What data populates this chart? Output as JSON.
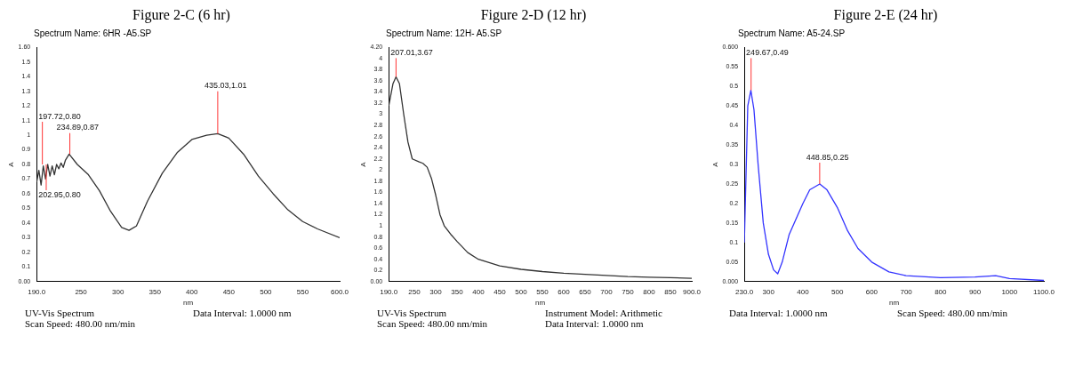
{
  "chart_data": [
    {
      "type": "line",
      "title": "Figure 2-C (6 hr)",
      "subtitle": "Spectrum Name: 6HR -A5.SP",
      "xlabel": "nm",
      "ylabel": "A",
      "x": [
        190,
        193,
        196,
        199,
        202,
        205,
        208,
        211,
        214,
        217,
        220,
        223,
        226,
        229,
        234,
        245,
        260,
        275,
        290,
        305,
        315,
        325,
        340,
        360,
        380,
        400,
        420,
        435,
        450,
        470,
        490,
        510,
        530,
        550,
        570,
        600
      ],
      "series": [
        {
          "color": "#333333",
          "values": [
            0.68,
            0.76,
            0.66,
            0.79,
            0.7,
            0.8,
            0.72,
            0.79,
            0.73,
            0.8,
            0.77,
            0.81,
            0.78,
            0.83,
            0.87,
            0.8,
            0.73,
            0.62,
            0.48,
            0.37,
            0.35,
            0.38,
            0.55,
            0.74,
            0.88,
            0.97,
            1.0,
            1.01,
            0.98,
            0.87,
            0.72,
            0.6,
            0.49,
            0.41,
            0.36,
            0.3
          ]
        }
      ],
      "xlim": [
        190,
        600
      ],
      "xticks": [
        {
          "value": 190,
          "label": "190.0"
        },
        250,
        300,
        350,
        400,
        450,
        500,
        550,
        {
          "value": 600,
          "label": "600.0"
        }
      ],
      "ylim": [
        0,
        1.6
      ],
      "yticks": [
        {
          "value": 0,
          "label": "0.00"
        },
        0.1,
        0.2,
        0.3,
        0.4,
        0.5,
        0.6,
        0.7,
        0.8,
        0.9,
        1.0,
        1.1,
        1.2,
        1.3,
        1.4,
        1.5,
        {
          "value": 1.6,
          "label": "1.60"
        }
      ],
      "grid": false,
      "legend": false,
      "line_style": "solid",
      "marker": "none",
      "annotations": [
        "UV-Vis Spectrum",
        {
          "text": "197.72,0.80",
          "x": 197.72,
          "y": 0.8
        },
        {
          "text": "234.89,0.87",
          "x": 234.89,
          "y": 0.87
        },
        {
          "text": "202.95,0.80",
          "x": 202.95,
          "y": 0.8
        },
        {
          "text": "435.03,1.01",
          "x": 435.03,
          "y": 1.01
        },
        "Data Interval: 1.0000 nm",
        "Scan Speed: 480.00 nm/min"
      ]
    },
    {
      "type": "line",
      "title": "Figure 2-D (12 hr)",
      "subtitle": "Spectrum Name: 12H- A5.SP",
      "xlabel": "nm",
      "ylabel": "A",
      "x": [
        190,
        200,
        207,
        215,
        225,
        235,
        245,
        260,
        270,
        280,
        290,
        300,
        310,
        320,
        335,
        350,
        375,
        400,
        450,
        500,
        550,
        600,
        650,
        700,
        750,
        800,
        850,
        900
      ],
      "series": [
        {
          "color": "#333333",
          "values": [
            3.15,
            3.55,
            3.67,
            3.55,
            3.0,
            2.5,
            2.2,
            2.15,
            2.12,
            2.05,
            1.85,
            1.55,
            1.2,
            1.0,
            0.85,
            0.72,
            0.52,
            0.4,
            0.28,
            0.22,
            0.18,
            0.15,
            0.13,
            0.11,
            0.09,
            0.08,
            0.07,
            0.06
          ]
        }
      ],
      "xlim": [
        190,
        900
      ],
      "xticks": [
        {
          "value": 190,
          "label": "190.0"
        },
        250,
        300,
        350,
        400,
        450,
        500,
        550,
        600,
        650,
        700,
        750,
        800,
        850,
        {
          "value": 900,
          "label": "900.0"
        }
      ],
      "ylim": [
        0,
        4.2
      ],
      "yticks": [
        {
          "value": 0,
          "label": "0.00"
        },
        0.2,
        0.4,
        0.6,
        0.8,
        1.0,
        1.2,
        1.4,
        1.6,
        1.8,
        2.0,
        2.2,
        2.4,
        2.6,
        2.8,
        3.0,
        3.2,
        3.4,
        3.6,
        3.8,
        4.0,
        {
          "value": 4.2,
          "label": "4.20"
        }
      ],
      "grid": false,
      "legend": false,
      "line_style": "solid",
      "marker": "none",
      "annotations": [
        "UV-Vis Spectrum",
        {
          "text": "207.01,3.67",
          "x": 207.01,
          "y": 3.67
        },
        "Instrument Model: Arithmetic",
        "Scan Speed: 480.00 nm/min",
        "Data Interval: 1.0000 nm"
      ]
    },
    {
      "type": "line",
      "title": "Figure 2-E (24 hr)",
      "subtitle": "Spectrum Name: A5-24.SP",
      "xlabel": "nm",
      "ylabel": "A",
      "x": [
        230,
        240,
        249,
        258,
        270,
        285,
        300,
        315,
        327,
        340,
        360,
        380,
        400,
        420,
        449,
        470,
        500,
        530,
        560,
        600,
        650,
        700,
        800,
        900,
        960,
        1000,
        1100
      ],
      "series": [
        {
          "color": "#3333ff",
          "values": [
            0.1,
            0.45,
            0.49,
            0.44,
            0.3,
            0.15,
            0.07,
            0.03,
            0.02,
            0.05,
            0.12,
            0.16,
            0.2,
            0.235,
            0.25,
            0.235,
            0.19,
            0.13,
            0.085,
            0.05,
            0.025,
            0.015,
            0.01,
            0.012,
            0.015,
            0.008,
            0.003
          ]
        }
      ],
      "xlim": [
        230,
        1100
      ],
      "xticks": [
        {
          "value": 230,
          "label": "230.0"
        },
        300,
        400,
        500,
        600,
        700,
        800,
        900,
        1000,
        {
          "value": 1100,
          "label": "1100.0"
        }
      ],
      "ylim": [
        0,
        0.6
      ],
      "yticks": [
        {
          "value": 0,
          "label": "0.000"
        },
        0.05,
        0.1,
        0.15,
        0.2,
        0.25,
        0.3,
        0.35,
        0.4,
        0.45,
        0.5,
        0.55,
        {
          "value": 0.6,
          "label": "0.600"
        }
      ],
      "grid": false,
      "legend": false,
      "line_style": "solid",
      "marker": "none",
      "annotations": [
        {
          "text": "249.67,0.49",
          "x": 249.67,
          "y": 0.49
        },
        {
          "text": "448.85,0.25",
          "x": 448.85,
          "y": 0.25
        },
        "Data Interval: 1.0000 nm",
        "Scan Speed: 480.00 nm/min"
      ]
    }
  ]
}
